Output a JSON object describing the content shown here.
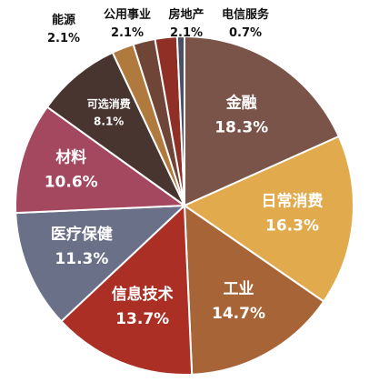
{
  "chart_data": {
    "type": "pie",
    "title": "",
    "slices": [
      {
        "label": "金融",
        "value": 18.3,
        "display": "18.3%",
        "color": "#7b5449"
      },
      {
        "label": "日常消费",
        "value": 16.3,
        "display": "16.3%",
        "color": "#e1aa4c"
      },
      {
        "label": "工业",
        "value": 14.7,
        "display": "14.7%",
        "color": "#a76537"
      },
      {
        "label": "信息技术",
        "value": 13.7,
        "display": "13.7%",
        "color": "#ab2f25"
      },
      {
        "label": "医疗保健",
        "value": 11.3,
        "display": "11.3%",
        "color": "#6a7087"
      },
      {
        "label": "材料",
        "value": 10.6,
        "display": "10.6%",
        "color": "#a4485f"
      },
      {
        "label": "可选消费",
        "value": 8.1,
        "display": "8.1%",
        "color": "#493530"
      },
      {
        "label": "能源",
        "value": 2.1,
        "display": "2.1%",
        "color": "#b07a3e"
      },
      {
        "label": "公用事业",
        "value": 2.1,
        "display": "2.1%",
        "color": "#6e4537"
      },
      {
        "label": "房地产",
        "value": 2.1,
        "display": "2.1%",
        "color": "#8f2f25"
      },
      {
        "label": "电信服务",
        "value": 0.7,
        "display": "0.7%",
        "color": "#4a5065"
      }
    ],
    "start_angle_deg": 0,
    "direction": "clockwise",
    "legend": "none",
    "labels": "on-slice-and-callout"
  }
}
